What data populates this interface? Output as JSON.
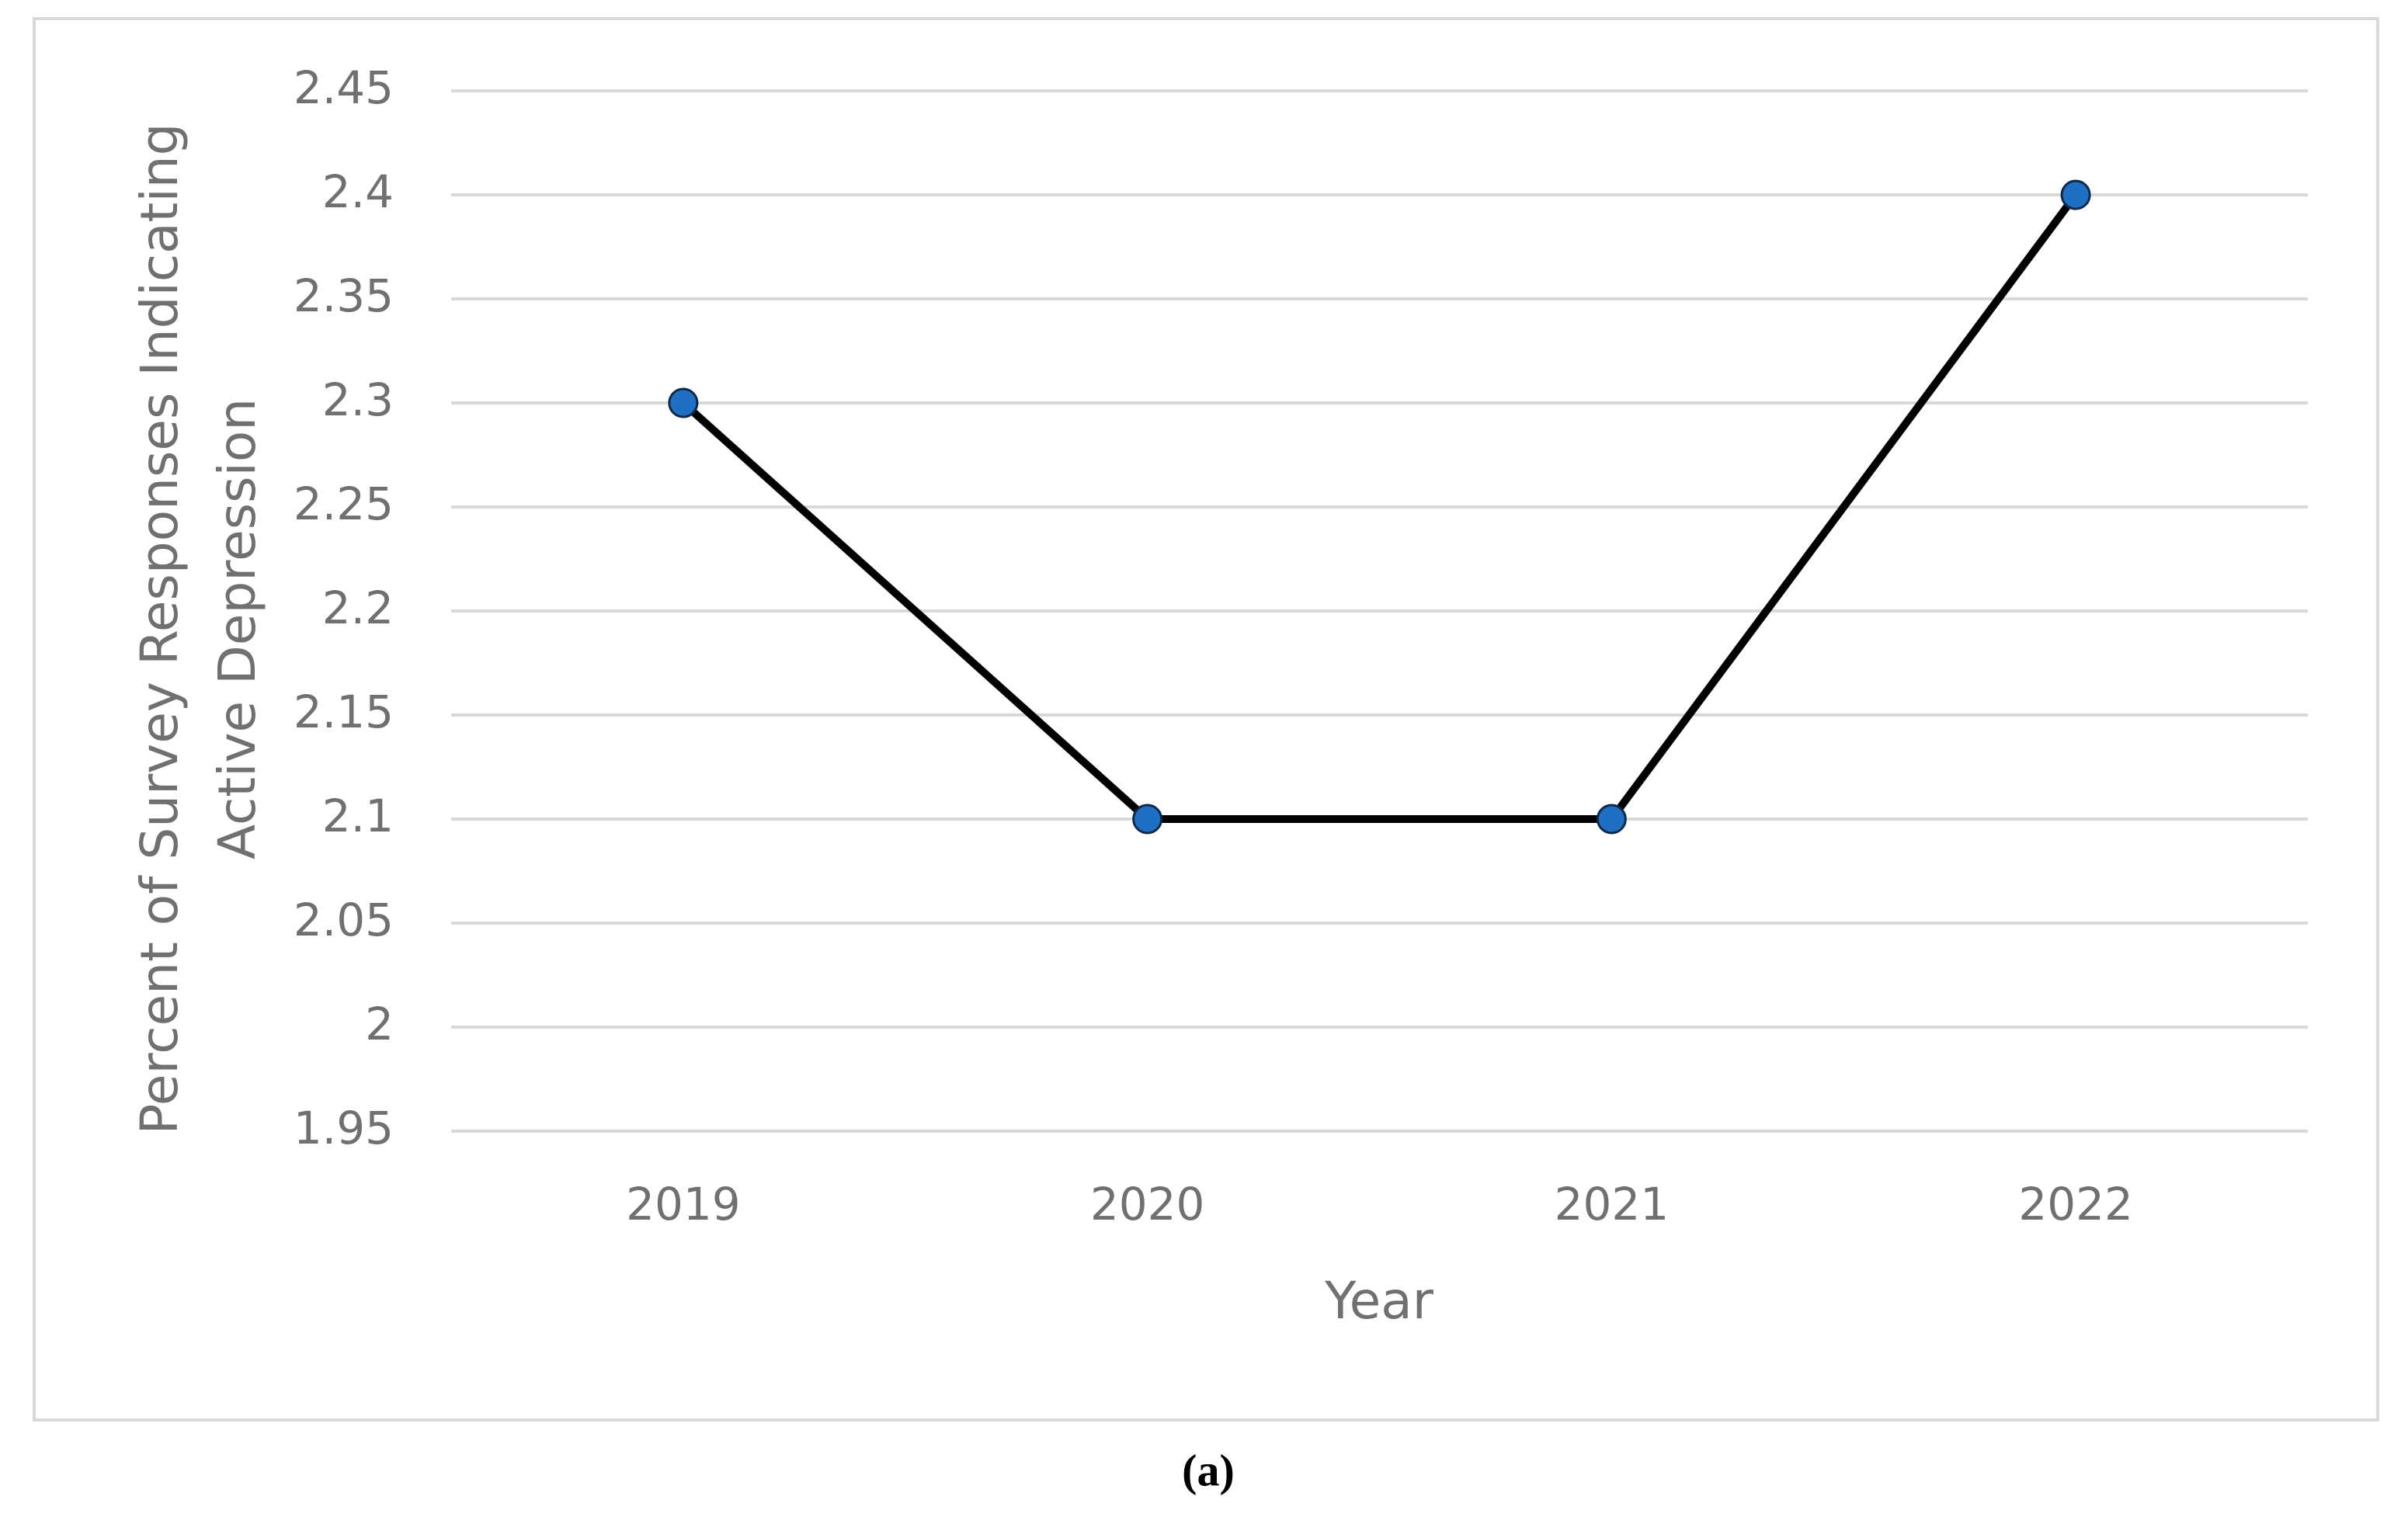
{
  "chart_data": {
    "type": "line",
    "x_label": "Year",
    "y_label": [
      "Percent of Survey Responses Indicating",
      "Active Depression"
    ],
    "caption": "(a)",
    "categories": [
      "2019",
      "2020",
      "2021",
      "2022"
    ],
    "series": [
      {
        "color": "#000000",
        "marker_color": "#1f6fc4",
        "values": [
          2.3,
          2.1,
          2.1,
          2.4
        ]
      }
    ],
    "ylim": [
      1.95,
      2.45
    ],
    "yticks": [
      1.95,
      2,
      2.05,
      2.1,
      2.15,
      2.2,
      2.25,
      2.3,
      2.35,
      2.4,
      2.45
    ],
    "grid": true
  }
}
